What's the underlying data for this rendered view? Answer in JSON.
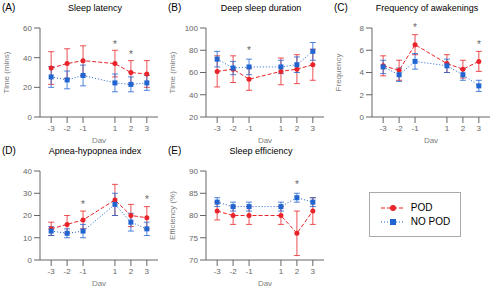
{
  "chart_data": [
    {
      "type": "line",
      "panel_label": "(A)",
      "title": "Sleep latency",
      "x_label": "Day",
      "y_label": "Time (mins)",
      "x": [
        -3,
        -2,
        -1,
        1,
        2,
        3
      ],
      "xlim": [
        -3.7,
        3.7
      ],
      "xticks": [
        -3,
        -2,
        -1,
        1,
        2,
        3
      ],
      "ylim": [
        0,
        60
      ],
      "yticks": [
        0,
        20,
        40,
        60
      ],
      "grid": false,
      "series": [
        {
          "name": "POD",
          "color": "#e8242a",
          "marker": "circle",
          "line_style": "dashed",
          "values": [
            33,
            36,
            38,
            36,
            30,
            29
          ],
          "error": [
            11,
            10,
            10,
            9,
            8,
            9
          ]
        },
        {
          "name": "NO POD",
          "color": "#2166d0",
          "marker": "square",
          "line_style": "dotted",
          "values": [
            27,
            25,
            28,
            23,
            22,
            23
          ],
          "error": [
            7,
            6,
            7,
            6,
            5,
            5
          ]
        }
      ],
      "annotations": [
        {
          "x": 1,
          "y": 46,
          "text": "*"
        },
        {
          "x": 2,
          "y": 39,
          "text": "*"
        }
      ]
    },
    {
      "type": "line",
      "panel_label": "(B)",
      "title": "Deep sleep duration",
      "x_label": "Day",
      "y_label": "Time (mins)",
      "x": [
        -3,
        -2,
        -1,
        1,
        2,
        3
      ],
      "xlim": [
        -3.7,
        3.7
      ],
      "xticks": [
        -3,
        -2,
        -1,
        1,
        2,
        3
      ],
      "ylim": [
        20,
        100
      ],
      "yticks": [
        20,
        40,
        60,
        80,
        100
      ],
      "grid": false,
      "series": [
        {
          "name": "POD",
          "color": "#e8242a",
          "marker": "circle",
          "line_style": "dashed",
          "values": [
            61,
            63,
            54,
            61,
            63,
            67
          ],
          "error": [
            14,
            12,
            10,
            12,
            13,
            14
          ]
        },
        {
          "name": "NO POD",
          "color": "#2166d0",
          "marker": "square",
          "line_style": "dotted",
          "values": [
            72,
            64,
            65,
            65,
            67,
            79
          ],
          "error": [
            7,
            6,
            7,
            6,
            7,
            8
          ]
        }
      ],
      "annotations": [
        {
          "x": -1,
          "y": 76,
          "text": "*"
        }
      ]
    },
    {
      "type": "line",
      "panel_label": "(C)",
      "title": "Frequency of awakenings",
      "x_label": "Day",
      "y_label": "Frequency",
      "x": [
        -3,
        -2,
        -1,
        1,
        2,
        3
      ],
      "xlim": [
        -3.7,
        3.7
      ],
      "xticks": [
        -3,
        -2,
        -1,
        1,
        2,
        3
      ],
      "ylim": [
        0,
        8
      ],
      "yticks": [
        0,
        2,
        4,
        6,
        8
      ],
      "grid": false,
      "series": [
        {
          "name": "POD",
          "color": "#e8242a",
          "marker": "circle",
          "line_style": "dashed",
          "values": [
            4.6,
            4.2,
            6.5,
            4.8,
            4.3,
            5.0
          ],
          "error": [
            0.9,
            0.9,
            0.9,
            0.8,
            0.8,
            0.9
          ]
        },
        {
          "name": "NO POD",
          "color": "#2166d0",
          "marker": "square",
          "line_style": "dotted",
          "values": [
            4.5,
            3.8,
            5.0,
            4.6,
            3.8,
            2.8
          ],
          "error": [
            0.6,
            0.6,
            0.7,
            0.6,
            0.5,
            0.5
          ]
        }
      ],
      "annotations": [
        {
          "x": -1,
          "y": 7.6,
          "text": "*"
        },
        {
          "x": 3,
          "y": 6.1,
          "text": "*"
        }
      ]
    },
    {
      "type": "line",
      "panel_label": "(D)",
      "title": "Apnea-hypopnea index",
      "x_label": "Day",
      "x": [
        -3,
        -2,
        -1,
        1,
        2,
        3
      ],
      "xlim": [
        -3.7,
        3.7
      ],
      "xticks": [
        -3,
        -2,
        -1,
        1,
        2,
        3
      ],
      "ylim": [
        0,
        40
      ],
      "yticks": [
        0,
        10,
        20,
        30,
        40
      ],
      "grid": false,
      "series": [
        {
          "name": "POD",
          "color": "#e8242a",
          "marker": "circle",
          "line_style": "dashed",
          "values": [
            14,
            16,
            18,
            27,
            20,
            19
          ],
          "error": [
            3,
            4,
            4,
            7,
            5,
            5
          ]
        },
        {
          "name": "NO POD",
          "color": "#2166d0",
          "marker": "square",
          "line_style": "dotted",
          "values": [
            13,
            12,
            13,
            25,
            17,
            14
          ],
          "error": [
            2,
            2,
            3,
            5,
            4,
            3
          ]
        }
      ],
      "annotations": [
        {
          "x": -1,
          "y": 23,
          "text": "*"
        },
        {
          "x": 3,
          "y": 25,
          "text": "*"
        }
      ]
    },
    {
      "type": "line",
      "panel_label": "(E)",
      "title": "Sleep efficiency",
      "x_label": "Day",
      "y_label": "Efficiency (%)",
      "x": [
        -3,
        -2,
        -1,
        1,
        2,
        3
      ],
      "xlim": [
        -3.7,
        3.7
      ],
      "xticks": [
        -3,
        -2,
        -1,
        1,
        2,
        3
      ],
      "ylim": [
        70,
        90
      ],
      "yticks": [
        70,
        75,
        80,
        85,
        90
      ],
      "grid": false,
      "legend": "right",
      "series": [
        {
          "name": "POD",
          "color": "#e8242a",
          "marker": "circle",
          "line_style": "dashed",
          "values": [
            81,
            80,
            80,
            80,
            76,
            81
          ],
          "error": [
            2,
            2,
            2,
            2,
            5,
            3
          ]
        },
        {
          "name": "NO POD",
          "color": "#2166d0",
          "marker": "square",
          "line_style": "dotted",
          "values": [
            83,
            82,
            82,
            82,
            84,
            83
          ],
          "error": [
            1,
            1,
            1,
            1,
            1,
            1
          ]
        }
      ],
      "annotations": [
        {
          "x": 2,
          "y": 86,
          "text": "*"
        }
      ]
    }
  ]
}
